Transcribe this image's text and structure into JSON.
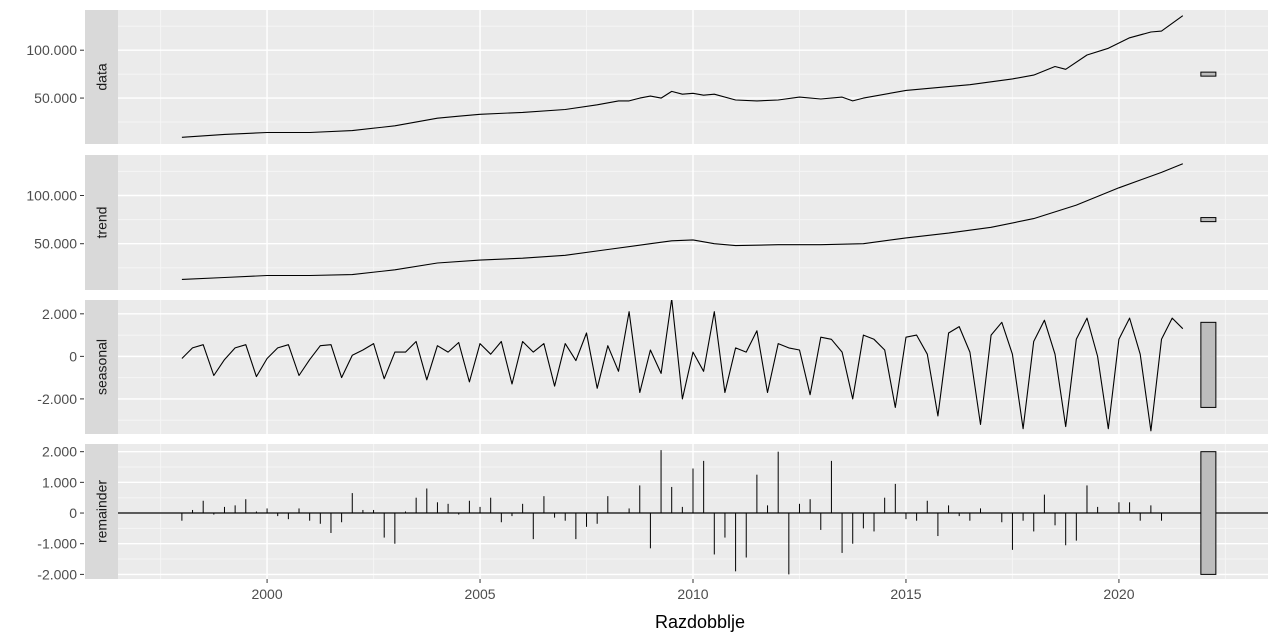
{
  "chart_data": {
    "type": "line",
    "xlabel": "Razdobblje",
    "x_range": [
      1996.5,
      2023.5
    ],
    "x_ticks": [
      {
        "value": 2000,
        "label": "2000"
      },
      {
        "value": 2005,
        "label": "2005"
      },
      {
        "value": 2010,
        "label": "2010"
      },
      {
        "value": 2015,
        "label": "2015"
      },
      {
        "value": 2020,
        "label": "2020"
      }
    ],
    "panels": [
      {
        "name": "data",
        "ylim": [
          2000,
          142000
        ],
        "y_ticks": [
          {
            "value": 50000,
            "label": "50.000"
          },
          {
            "value": 100000,
            "label": "100.000"
          }
        ],
        "range_bar": {
          "center": 75000,
          "half_height": 2100
        },
        "mark": "line",
        "x": [
          1998.0,
          1999.0,
          2000.0,
          2001.0,
          2002.0,
          2003.0,
          2004.0,
          2004.5,
          2005.0,
          2006.0,
          2007.0,
          2007.75,
          2008.25,
          2008.5,
          2008.75,
          2009.0,
          2009.25,
          2009.5,
          2009.75,
          2010.0,
          2010.25,
          2010.5,
          2011.0,
          2011.5,
          2012.0,
          2012.5,
          2013.0,
          2013.5,
          2013.75,
          2014.0,
          2015.0,
          2016.0,
          2016.5,
          2017.0,
          2017.5,
          2018.0,
          2018.5,
          2018.75,
          2019.25,
          2019.75,
          2020.25,
          2020.75,
          2021.0,
          2021.5
        ],
        "values": [
          9000,
          12000,
          14000,
          14000,
          16000,
          21000,
          29000,
          31000,
          33000,
          35000,
          38000,
          43000,
          47000,
          47000,
          50000,
          52000,
          50000,
          57000,
          54000,
          55000,
          53000,
          54000,
          48000,
          47000,
          48000,
          51000,
          49000,
          51000,
          47000,
          50000,
          58000,
          62000,
          64000,
          67000,
          70000,
          74000,
          83000,
          80000,
          95000,
          102000,
          113000,
          119000,
          120000,
          136000
        ]
      },
      {
        "name": "trend",
        "ylim": [
          2000,
          142000
        ],
        "y_ticks": [
          {
            "value": 50000,
            "label": "50.000"
          },
          {
            "value": 100000,
            "label": "100.000"
          }
        ],
        "range_bar": {
          "center": 75000,
          "half_height": 2100
        },
        "mark": "line",
        "x": [
          1998.0,
          1999.0,
          2000.0,
          2001.0,
          2002.0,
          2003.0,
          2004.0,
          2005.0,
          2006.0,
          2007.0,
          2008.0,
          2009.0,
          2009.5,
          2010.0,
          2010.5,
          2011.0,
          2012.0,
          2013.0,
          2014.0,
          2015.0,
          2016.0,
          2017.0,
          2018.0,
          2019.0,
          2020.0,
          2021.0,
          2021.5
        ],
        "values": [
          13000,
          15000,
          17000,
          17000,
          18000,
          23000,
          30000,
          33000,
          35000,
          38000,
          44000,
          50000,
          53000,
          54000,
          50000,
          48000,
          49000,
          49000,
          50000,
          56000,
          61000,
          67000,
          76000,
          90000,
          108000,
          124000,
          133000
        ]
      },
      {
        "name": "seasonal",
        "ylim": [
          -3650,
          2650
        ],
        "y_ticks": [
          {
            "value": -2000,
            "label": "-2.000"
          },
          {
            "value": 0,
            "label": "0"
          },
          {
            "value": 2000,
            "label": "2.000"
          }
        ],
        "range_bar": {
          "center": -400,
          "half_height": 2000
        },
        "mark": "line",
        "x": [
          1998.0,
          1998.25,
          1998.5,
          1998.75,
          1999.0,
          1999.25,
          1999.5,
          1999.75,
          2000.0,
          2000.25,
          2000.5,
          2000.75,
          2001.0,
          2001.25,
          2001.5,
          2001.75,
          2002.0,
          2002.25,
          2002.5,
          2002.75,
          2003.0,
          2003.25,
          2003.5,
          2003.75,
          2004.0,
          2004.25,
          2004.5,
          2004.75,
          2005.0,
          2005.25,
          2005.5,
          2005.75,
          2006.0,
          2006.25,
          2006.5,
          2006.75,
          2007.0,
          2007.25,
          2007.5,
          2007.75,
          2008.0,
          2008.25,
          2008.5,
          2008.75,
          2009.0,
          2009.25,
          2009.5,
          2009.75,
          2010.0,
          2010.25,
          2010.5,
          2010.75,
          2011.0,
          2011.25,
          2011.5,
          2011.75,
          2012.0,
          2012.25,
          2012.5,
          2012.75,
          2013.0,
          2013.25,
          2013.5,
          2013.75,
          2014.0,
          2014.25,
          2014.5,
          2014.75,
          2015.0,
          2015.25,
          2015.5,
          2015.75,
          2016.0,
          2016.25,
          2016.5,
          2016.75,
          2017.0,
          2017.25,
          2017.5,
          2017.75,
          2018.0,
          2018.25,
          2018.5,
          2018.75,
          2019.0,
          2019.25,
          2019.5,
          2019.75,
          2020.0,
          2020.25,
          2020.5,
          2020.75,
          2021.0,
          2021.25,
          2021.5
        ],
        "values": [
          -100,
          400,
          550,
          -900,
          -150,
          400,
          550,
          -950,
          -100,
          400,
          550,
          -900,
          -150,
          500,
          550,
          -1000,
          50,
          300,
          600,
          -1050,
          200,
          200,
          700,
          -1100,
          500,
          200,
          650,
          -1200,
          600,
          100,
          700,
          -1300,
          700,
          200,
          600,
          -1400,
          600,
          -200,
          1100,
          -1500,
          500,
          -700,
          2100,
          -1700,
          300,
          -800,
          2700,
          -2000,
          200,
          -700,
          2100,
          -1700,
          400,
          200,
          1200,
          -1700,
          600,
          400,
          300,
          -1800,
          900,
          800,
          200,
          -2000,
          1000,
          800,
          300,
          -2400,
          900,
          1000,
          100,
          -2800,
          1100,
          1400,
          200,
          -3200,
          1000,
          1600,
          100,
          -3400,
          700,
          1700,
          100,
          -3300,
          800,
          1800,
          0,
          -3400,
          800,
          1800,
          100,
          -3500,
          800,
          1800,
          1300
        ]
      },
      {
        "name": "remainder",
        "ylim": [
          -2150,
          2250
        ],
        "y_ticks": [
          {
            "value": -2000,
            "label": "-2.000"
          },
          {
            "value": -1000,
            "label": "-1.000"
          },
          {
            "value": 0,
            "label": "0"
          },
          {
            "value": 1000,
            "label": "1.000"
          },
          {
            "value": 2000,
            "label": "2.000"
          }
        ],
        "range_bar": {
          "center": 0,
          "half_height": 2000
        },
        "mark": "spikes",
        "x": [
          1998.0,
          1998.25,
          1998.5,
          1998.75,
          1999.0,
          1999.25,
          1999.5,
          1999.75,
          2000.0,
          2000.25,
          2000.5,
          2000.75,
          2001.0,
          2001.25,
          2001.5,
          2001.75,
          2002.0,
          2002.25,
          2002.5,
          2002.75,
          2003.0,
          2003.25,
          2003.5,
          2003.75,
          2004.0,
          2004.25,
          2004.5,
          2004.75,
          2005.0,
          2005.25,
          2005.5,
          2005.75,
          2006.0,
          2006.25,
          2006.5,
          2006.75,
          2007.0,
          2007.25,
          2007.5,
          2007.75,
          2008.0,
          2008.25,
          2008.5,
          2008.75,
          2009.0,
          2009.25,
          2009.5,
          2009.75,
          2010.0,
          2010.25,
          2010.5,
          2010.75,
          2011.0,
          2011.25,
          2011.5,
          2011.75,
          2012.0,
          2012.25,
          2012.5,
          2012.75,
          2013.0,
          2013.25,
          2013.5,
          2013.75,
          2014.0,
          2014.25,
          2014.5,
          2014.75,
          2015.0,
          2015.25,
          2015.5,
          2015.75,
          2016.0,
          2016.25,
          2016.5,
          2016.75,
          2017.0,
          2017.25,
          2017.5,
          2017.75,
          2018.0,
          2018.25,
          2018.5,
          2018.75,
          2019.0,
          2019.25,
          2019.5,
          2019.75,
          2020.0,
          2020.25,
          2020.5,
          2020.75,
          2021.0,
          2021.25,
          2021.5
        ],
        "values": [
          -250,
          100,
          400,
          -50,
          200,
          250,
          450,
          50,
          150,
          -100,
          -200,
          150,
          -250,
          -350,
          -650,
          -300,
          650,
          100,
          100,
          -800,
          -1000,
          50,
          500,
          800,
          350,
          300,
          -50,
          400,
          200,
          500,
          -300,
          -100,
          300,
          -850,
          550,
          -150,
          -250,
          -850,
          -450,
          -350,
          550,
          0,
          150,
          900,
          -1150,
          2050,
          850,
          200,
          1450,
          1700,
          -1350,
          -800,
          -1900,
          -1450,
          1250,
          250,
          2000,
          -2000,
          300,
          450,
          -550,
          1700,
          -1300,
          -1000,
          -500,
          -600,
          500,
          950,
          -200,
          -250,
          400,
          -750,
          250,
          -100,
          -250,
          150,
          0,
          -300,
          -1200,
          -250,
          -600,
          600,
          -400,
          -1050,
          -900,
          900,
          200,
          0,
          350,
          350,
          -250,
          250,
          -250,
          0,
          0
        ]
      }
    ]
  },
  "colors": {
    "panel_bg": "#ebebeb",
    "grid_major": "#ffffff",
    "grid_minor": "#f5f5f5",
    "strip_bg": "#d9d9d9",
    "range_bar_fill": "#bdbdbd",
    "line": "#000000",
    "tick_text": "#4d4d4d"
  }
}
